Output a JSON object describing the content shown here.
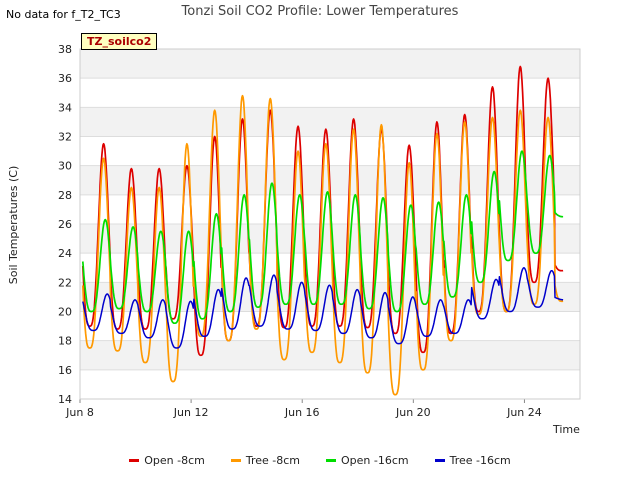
{
  "note": "No data for f_T2_TC3",
  "badge": "TZ_soilco2",
  "chart_data": {
    "type": "line",
    "title": "Tonzi Soil CO2 Profile: Lower Temperatures",
    "xlabel": "Time",
    "ylabel": "Soil Temperatures (C)",
    "xlim": [
      "2024-06-08",
      "2024-06-26"
    ],
    "ylim": [
      14,
      38
    ],
    "x_tick_labels": [
      "Jun 8",
      "Jun 12",
      "Jun 16",
      "Jun 20",
      "Jun 24"
    ],
    "y_tick_labels": [
      "14",
      "16",
      "18",
      "20",
      "22",
      "24",
      "26",
      "28",
      "30",
      "32",
      "34",
      "36",
      "38"
    ],
    "legend_position": "bottom",
    "x": [
      "2024-06-08",
      "2024-06-09",
      "2024-06-10",
      "2024-06-11",
      "2024-06-12",
      "2024-06-13",
      "2024-06-14",
      "2024-06-15",
      "2024-06-16",
      "2024-06-17",
      "2024-06-18",
      "2024-06-19",
      "2024-06-20",
      "2024-06-21",
      "2024-06-22",
      "2024-06-23",
      "2024-06-24",
      "2024-06-25"
    ],
    "series": [
      {
        "name": "Open -8cm",
        "color": "#dd0000",
        "daily_min": [
          19.0,
          18.8,
          18.8,
          19.5,
          17.0,
          18.0,
          19.0,
          18.9,
          19.0,
          19.0,
          18.9,
          18.5,
          17.2,
          18.5,
          20.0,
          20.0,
          22.0,
          22.8
        ],
        "daily_max": [
          31.5,
          29.8,
          29.8,
          30.0,
          32.0,
          33.2,
          33.8,
          32.7,
          32.5,
          33.2,
          32.5,
          31.4,
          33.0,
          33.5,
          35.4,
          36.8,
          36.0,
          24.0
        ]
      },
      {
        "name": "Tree -8cm",
        "color": "#ff9900",
        "daily_min": [
          17.5,
          17.3,
          16.5,
          15.2,
          18.3,
          18.0,
          18.8,
          16.7,
          17.2,
          16.5,
          15.8,
          14.3,
          16.0,
          18.0,
          19.8,
          20.0,
          20.5,
          20.7
        ],
        "daily_max": [
          30.5,
          28.5,
          28.5,
          31.5,
          33.8,
          34.8,
          34.6,
          31.0,
          31.5,
          32.5,
          32.8,
          30.2,
          32.2,
          33.0,
          33.3,
          33.8,
          33.3,
          24.0
        ]
      },
      {
        "name": "Open -16cm",
        "color": "#00dd00",
        "daily_min": [
          20.0,
          20.2,
          20.0,
          19.2,
          19.5,
          20.0,
          20.3,
          20.5,
          20.5,
          20.5,
          20.2,
          20.0,
          20.5,
          21.0,
          22.0,
          23.5,
          24.0,
          26.5
        ],
        "daily_max": [
          26.3,
          25.8,
          25.5,
          25.5,
          26.7,
          28.0,
          28.8,
          28.0,
          28.2,
          28.0,
          27.8,
          27.3,
          27.5,
          28.0,
          29.6,
          31.0,
          30.7,
          27.0
        ]
      },
      {
        "name": "Tree -16cm",
        "color": "#0000cc",
        "daily_min": [
          18.7,
          18.5,
          18.2,
          17.5,
          18.3,
          18.8,
          19.0,
          18.8,
          18.7,
          18.5,
          18.2,
          17.8,
          18.3,
          18.5,
          19.5,
          20.0,
          20.3,
          20.8
        ],
        "daily_max": [
          21.2,
          20.8,
          20.8,
          20.7,
          21.5,
          22.3,
          22.5,
          22.0,
          21.8,
          21.5,
          21.3,
          21.0,
          20.8,
          20.8,
          22.2,
          23.0,
          22.8,
          21.0
        ]
      }
    ]
  }
}
